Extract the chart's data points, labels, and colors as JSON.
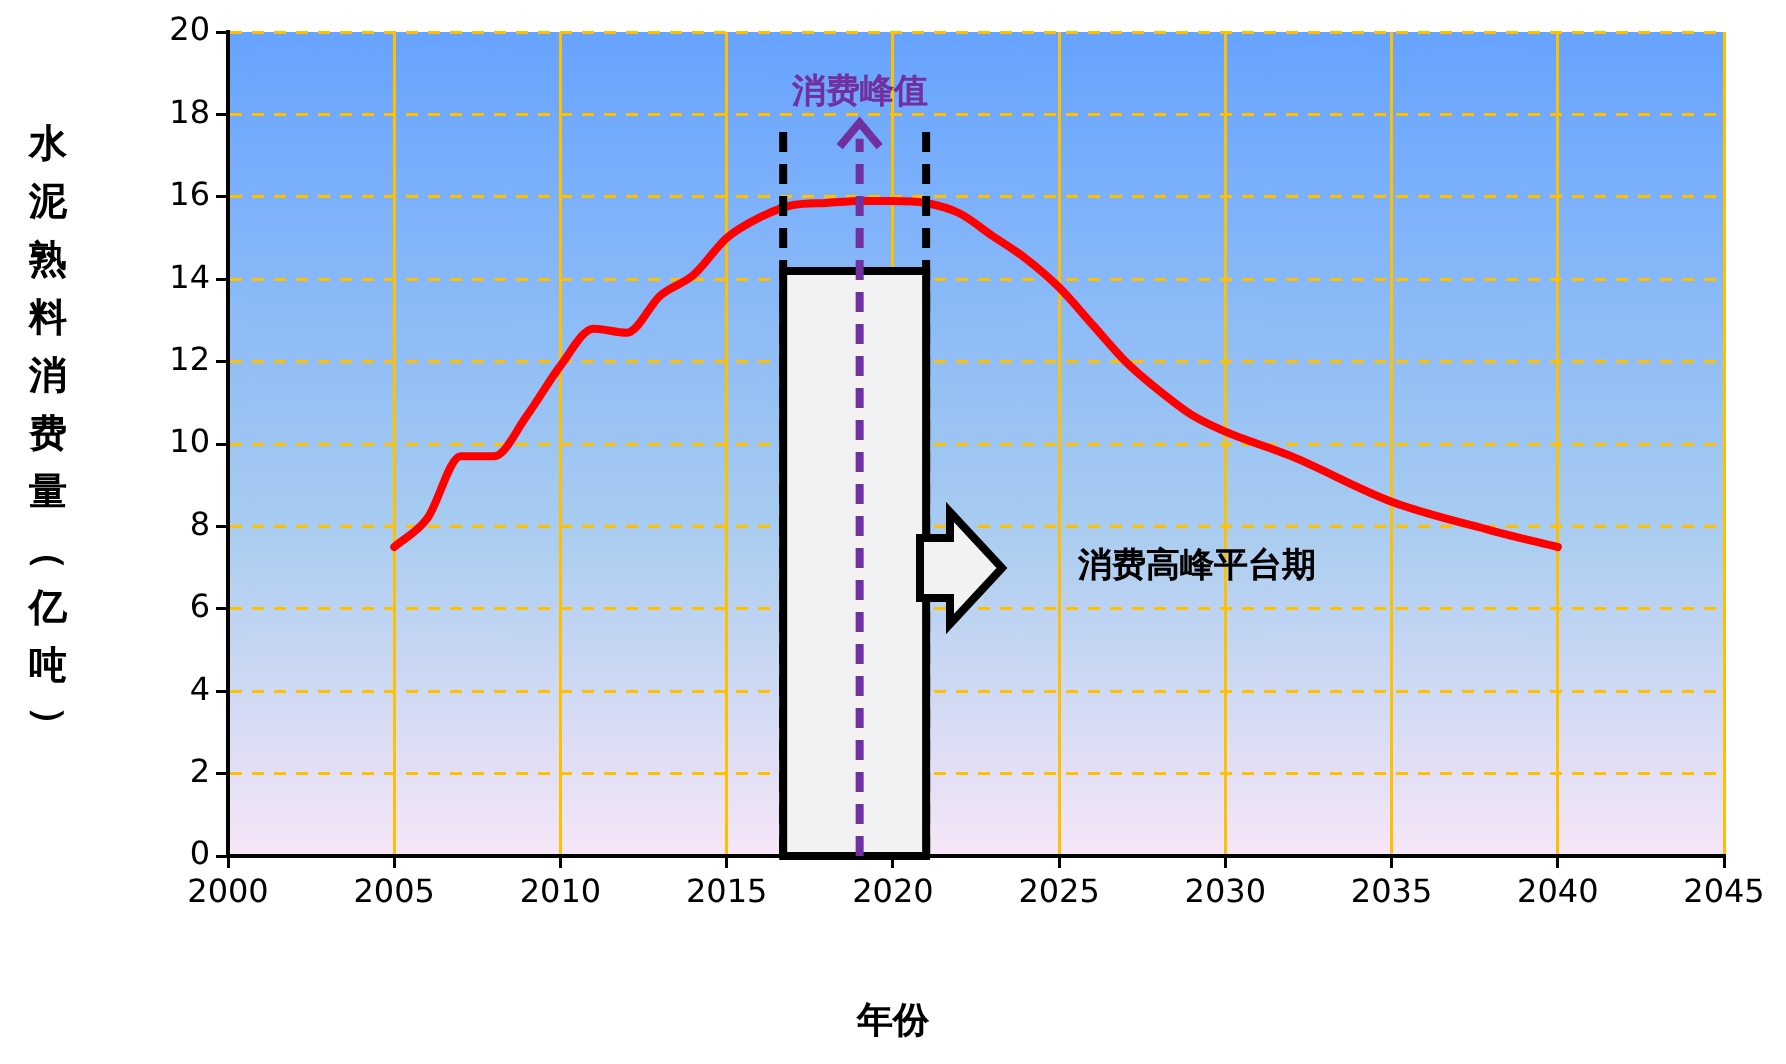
{
  "chart_data": {
    "type": "line",
    "ylabel": "水泥熟料消费量（亿吨）",
    "xlabel": "年份",
    "x": [
      2005,
      2006,
      2007,
      2008,
      2009,
      2010,
      2011,
      2012,
      2013,
      2014,
      2015,
      2016,
      2017,
      2018,
      2019,
      2020,
      2021,
      2022,
      2023,
      2024,
      2025,
      2026,
      2027,
      2028,
      2029,
      2030,
      2032,
      2035,
      2038,
      2040
    ],
    "series": [
      {
        "color": "#ff0000",
        "values": [
          7.5,
          8.2,
          9.7,
          9.7,
          10.7,
          11.9,
          12.8,
          12.7,
          13.6,
          14.1,
          15.0,
          15.5,
          15.8,
          15.85,
          15.9,
          15.9,
          15.85,
          15.6,
          15.05,
          14.5,
          13.8,
          12.9,
          12.0,
          11.3,
          10.7,
          10.3,
          9.7,
          8.6,
          7.9,
          7.5
        ]
      }
    ],
    "xlim": [
      2000,
      2045
    ],
    "xticks": [
      2000,
      2005,
      2010,
      2015,
      2020,
      2025,
      2030,
      2035,
      2040,
      2045
    ],
    "ylim": [
      0,
      20
    ],
    "yticks": [
      0,
      2,
      4,
      6,
      8,
      10,
      12,
      14,
      16,
      18,
      20
    ],
    "grid": true,
    "marker": "none",
    "line_style": "solid",
    "ref_lines": [
      {
        "axis": "x",
        "value": 2016.7,
        "color": "#000000",
        "line_style": "dashed"
      },
      {
        "axis": "x",
        "value": 2021,
        "color": "#000000",
        "line_style": "dashed"
      },
      {
        "axis": "x",
        "value": 2019,
        "label": "消费峰值",
        "color": "#7030a0",
        "line_style": "dashed"
      }
    ],
    "bands": [
      {
        "axis": "x",
        "from": 2016.7,
        "to": 2021,
        "color": "#f2f2f2"
      }
    ],
    "annotations": [
      "消费高峰平台期"
    ]
  }
}
